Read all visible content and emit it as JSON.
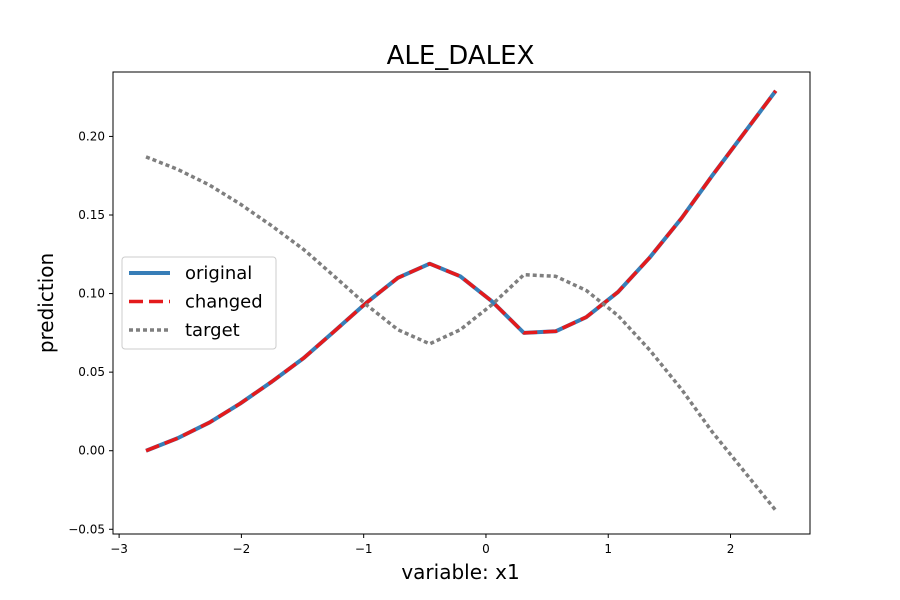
{
  "chart_data": {
    "type": "line",
    "title": "ALE_DALEX",
    "xlabel": "variable: x1",
    "ylabel": "prediction",
    "xlim": [
      -3.05,
      2.65
    ],
    "ylim": [
      -0.053,
      0.241
    ],
    "xticks": [
      -3,
      -2,
      -1,
      0,
      1,
      2
    ],
    "xtick_labels": [
      "−3",
      "−2",
      "−1",
      "0",
      "1",
      "2"
    ],
    "yticks": [
      -0.05,
      0.0,
      0.05,
      0.1,
      0.15,
      0.2
    ],
    "ytick_labels": [
      "−0.05",
      "0.00",
      "0.05",
      "0.10",
      "0.15",
      "0.20"
    ],
    "grid": false,
    "legend_position": "center-left",
    "series": [
      {
        "name": "original",
        "color": "#377eb8",
        "style": "solid",
        "x": [
          -2.78,
          -2.52,
          -2.26,
          -2.01,
          -1.75,
          -1.49,
          -1.24,
          -0.98,
          -0.72,
          -0.46,
          -0.21,
          0.05,
          0.31,
          0.57,
          0.82,
          1.08,
          1.34,
          1.6,
          1.85,
          2.11,
          2.37
        ],
        "y": [
          0.0,
          0.008,
          0.018,
          0.03,
          0.044,
          0.059,
          0.076,
          0.094,
          0.11,
          0.119,
          0.111,
          0.095,
          0.075,
          0.076,
          0.085,
          0.101,
          0.123,
          0.148,
          0.175,
          0.202,
          0.229
        ]
      },
      {
        "name": "changed",
        "color": "#e41a1c",
        "style": "dashed",
        "x": [
          -2.78,
          -2.52,
          -2.26,
          -2.01,
          -1.75,
          -1.49,
          -1.24,
          -0.98,
          -0.72,
          -0.46,
          -0.21,
          0.05,
          0.31,
          0.57,
          0.82,
          1.08,
          1.34,
          1.6,
          1.85,
          2.11,
          2.37
        ],
        "y": [
          0.0,
          0.008,
          0.018,
          0.03,
          0.044,
          0.059,
          0.076,
          0.094,
          0.11,
          0.119,
          0.111,
          0.095,
          0.075,
          0.076,
          0.085,
          0.101,
          0.123,
          0.148,
          0.175,
          0.202,
          0.229
        ]
      },
      {
        "name": "target",
        "color": "#7f7f7f",
        "style": "dotted",
        "x": [
          -2.78,
          -2.52,
          -2.26,
          -2.01,
          -1.75,
          -1.49,
          -1.24,
          -0.98,
          -0.72,
          -0.46,
          -0.21,
          0.05,
          0.31,
          0.57,
          0.82,
          1.08,
          1.34,
          1.6,
          1.85,
          2.11,
          2.37
        ],
        "y": [
          0.187,
          0.179,
          0.169,
          0.157,
          0.143,
          0.128,
          0.111,
          0.093,
          0.077,
          0.068,
          0.077,
          0.093,
          0.112,
          0.111,
          0.102,
          0.086,
          0.064,
          0.039,
          0.012,
          -0.013,
          -0.038
        ]
      }
    ]
  }
}
